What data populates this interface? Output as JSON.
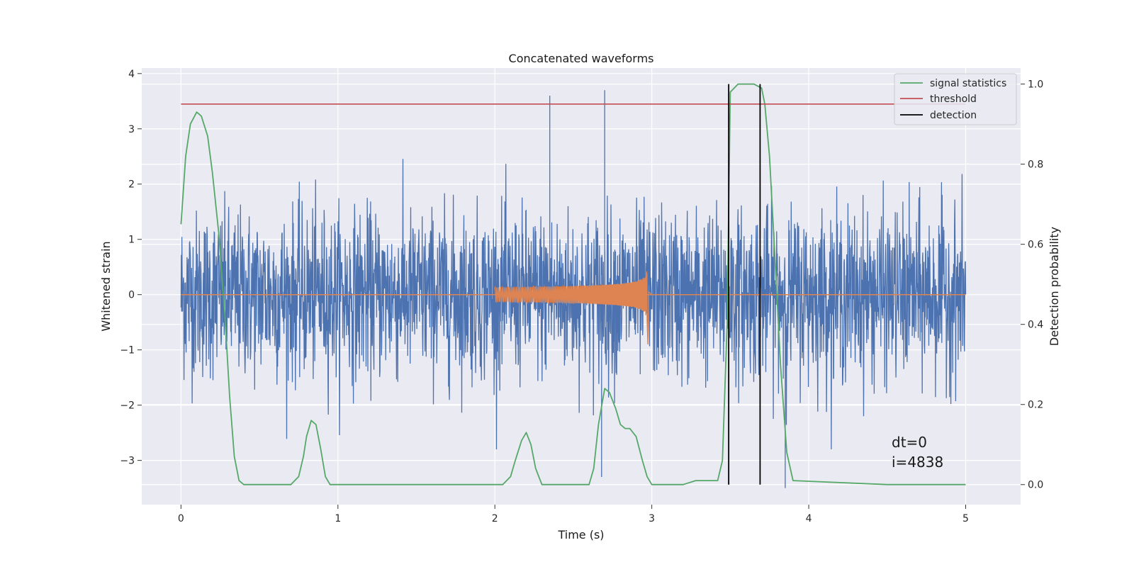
{
  "chart_data": {
    "type": "line",
    "title": "Concatenated waveforms",
    "xlabel": "Time (s)",
    "ylabel": "Whitened strain",
    "ylabel_right": "Detection probability",
    "xlim": [
      -0.25,
      5.35
    ],
    "ylim": [
      -3.8,
      4.1
    ],
    "ylim_right": [
      -0.05,
      1.04
    ],
    "x_ticks": [
      0,
      1,
      2,
      3,
      4,
      5
    ],
    "y_ticks": [
      -3,
      -2,
      -1,
      0,
      1,
      2,
      3,
      4
    ],
    "y_ticks_right": [
      0.0,
      0.2,
      0.4,
      0.6,
      0.8,
      1.0
    ],
    "grid": true,
    "legend_position": "top-right",
    "colors": {
      "background": "#eaeaf2",
      "strain": "#4c72b0",
      "injection": "#dd8452",
      "signal_statistics": "#55a868",
      "threshold": "#c44e52",
      "detection": "#000000"
    },
    "series": [
      {
        "name": "",
        "kind": "noise",
        "axis": "left",
        "x_range": [
          0,
          5
        ],
        "approx_envelope": [
          -2.2,
          2.5
        ],
        "notable_peaks": [
          {
            "x": 2.35,
            "y": 3.6
          },
          {
            "x": 2.7,
            "y": 3.7
          },
          {
            "x": 2.68,
            "y": -3.3
          },
          {
            "x": 3.85,
            "y": -3.5
          }
        ]
      },
      {
        "name": "",
        "kind": "chirp",
        "axis": "left",
        "x_range": [
          2.0,
          3.0
        ],
        "amplitude_start": 0.13,
        "amplitude_peak": 0.85,
        "peak_x": 2.97
      },
      {
        "name": "signal statistics",
        "axis": "right",
        "x": [
          0.0,
          0.03,
          0.06,
          0.1,
          0.13,
          0.17,
          0.2,
          0.24,
          0.28,
          0.31,
          0.34,
          0.37,
          0.4,
          0.7,
          0.75,
          0.78,
          0.8,
          0.83,
          0.86,
          0.89,
          0.92,
          0.95,
          2.05,
          2.1,
          2.13,
          2.17,
          2.2,
          2.23,
          2.26,
          2.3,
          2.6,
          2.63,
          2.66,
          2.7,
          2.73,
          2.77,
          2.8,
          2.83,
          2.86,
          2.9,
          2.94,
          2.97,
          3.0,
          3.1,
          3.2,
          3.28,
          3.35,
          3.42,
          3.45,
          3.48,
          3.5,
          3.55,
          3.65,
          3.7,
          3.72,
          3.75,
          3.78,
          3.82,
          3.86,
          3.9,
          4.5,
          5.0
        ],
        "y": [
          0.65,
          0.82,
          0.9,
          0.93,
          0.92,
          0.87,
          0.78,
          0.63,
          0.42,
          0.22,
          0.07,
          0.01,
          0.0,
          0.0,
          0.02,
          0.07,
          0.12,
          0.16,
          0.15,
          0.09,
          0.02,
          0.0,
          0.0,
          0.02,
          0.06,
          0.11,
          0.13,
          0.1,
          0.04,
          0.0,
          0.0,
          0.04,
          0.15,
          0.24,
          0.23,
          0.19,
          0.15,
          0.14,
          0.14,
          0.12,
          0.06,
          0.02,
          0.0,
          0.0,
          0.0,
          0.01,
          0.01,
          0.01,
          0.06,
          0.4,
          0.98,
          1.0,
          1.0,
          0.99,
          0.95,
          0.82,
          0.6,
          0.3,
          0.08,
          0.01,
          0.0,
          0.0
        ]
      },
      {
        "name": "threshold",
        "axis": "right",
        "x": [
          0,
          5
        ],
        "y": [
          0.95,
          0.95
        ]
      },
      {
        "name": "detection",
        "axis": "right",
        "x": [
          3.49,
          3.69
        ],
        "y_range": [
          0.0,
          1.0
        ]
      }
    ],
    "legend": [
      "signal statistics",
      "threshold",
      "detection"
    ],
    "annotations": [
      "dt=0",
      "i=4838"
    ]
  }
}
